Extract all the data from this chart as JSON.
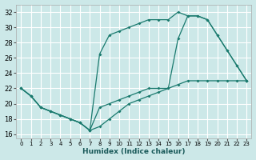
{
  "xlabel": "Humidex (Indice chaleur)",
  "background_color": "#cce8e8",
  "grid_color": "#ffffff",
  "line_color": "#1a7a6e",
  "xlim": [
    -0.5,
    23.5
  ],
  "ylim": [
    15.5,
    33.0
  ],
  "xticks": [
    0,
    1,
    2,
    3,
    4,
    5,
    6,
    7,
    8,
    9,
    10,
    11,
    12,
    13,
    14,
    15,
    16,
    17,
    18,
    19,
    20,
    21,
    22,
    23
  ],
  "yticks": [
    16,
    18,
    20,
    22,
    24,
    26,
    28,
    30,
    32
  ],
  "line1_x": [
    0,
    1,
    2,
    3,
    4,
    5,
    6,
    7,
    8,
    9,
    10,
    11,
    12,
    13,
    14,
    15,
    16,
    17,
    18,
    19,
    20,
    21,
    22,
    23
  ],
  "line1_y": [
    22.0,
    21.0,
    19.5,
    19.0,
    18.5,
    18.0,
    17.5,
    16.5,
    19.5,
    20.0,
    20.5,
    21.0,
    21.5,
    22.0,
    22.0,
    22.0,
    22.5,
    23.0,
    23.0,
    23.0,
    23.0,
    23.0,
    23.0,
    23.0
  ],
  "line2_x": [
    0,
    1,
    2,
    3,
    4,
    5,
    6,
    7,
    8,
    9,
    10,
    11,
    12,
    13,
    14,
    15,
    16,
    17,
    18,
    19,
    20,
    21,
    22,
    23
  ],
  "line2_y": [
    22.0,
    21.0,
    19.5,
    19.0,
    18.5,
    18.0,
    17.5,
    16.5,
    26.5,
    29.0,
    29.5,
    30.0,
    30.5,
    31.0,
    31.0,
    31.0,
    32.0,
    31.5,
    31.5,
    31.0,
    29.0,
    27.0,
    25.0,
    23.0
  ],
  "line3_x": [
    0,
    1,
    2,
    3,
    4,
    5,
    6,
    7,
    8,
    9,
    10,
    11,
    12,
    13,
    14,
    15,
    16,
    17,
    18,
    19,
    20,
    21,
    22,
    23
  ],
  "line3_y": [
    22.0,
    21.0,
    19.5,
    19.0,
    18.5,
    18.0,
    17.5,
    16.5,
    17.0,
    18.0,
    19.0,
    20.0,
    20.5,
    21.0,
    21.5,
    22.0,
    28.5,
    31.5,
    31.5,
    31.0,
    29.0,
    27.0,
    25.0,
    23.0
  ]
}
